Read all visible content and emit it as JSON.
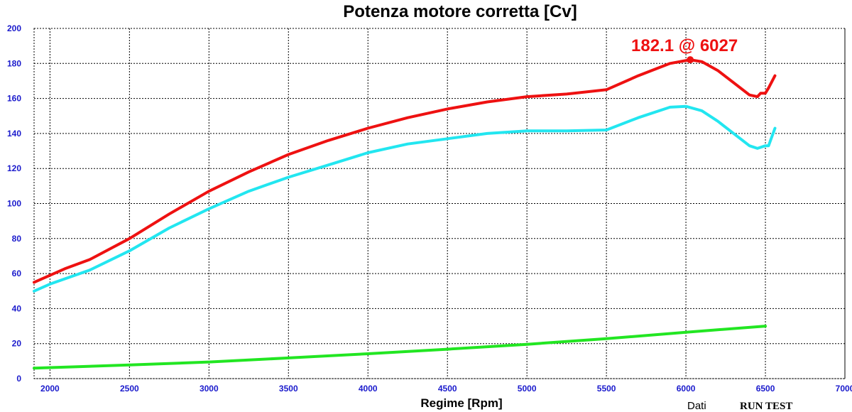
{
  "chart_data": {
    "type": "line",
    "title": "Potenza motore corretta [Cv]",
    "xlabel": "Regime [Rpm]",
    "ylabel": "",
    "xlim": [
      1900,
      7000
    ],
    "ylim": [
      0,
      200
    ],
    "xticks": [
      2000,
      2500,
      3000,
      3500,
      4000,
      4500,
      5000,
      5500,
      6000,
      6500,
      7000
    ],
    "yticks": [
      0,
      20,
      40,
      60,
      80,
      100,
      120,
      140,
      160,
      180,
      200
    ],
    "grid": true,
    "series": [
      {
        "color": "#ee1111",
        "x": [
          1900,
          2000,
          2100,
          2250,
          2500,
          2750,
          3000,
          3250,
          3500,
          3750,
          4000,
          4250,
          4500,
          4750,
          5000,
          5250,
          5500,
          5700,
          5900,
          6027,
          6100,
          6200,
          6300,
          6400,
          6450,
          6470,
          6500,
          6520,
          6560
        ],
        "y": [
          55,
          59,
          63,
          68,
          80,
          94,
          107,
          118,
          128,
          136,
          143,
          149,
          154,
          158,
          161,
          162.5,
          165,
          173,
          180,
          182.1,
          181,
          176,
          169,
          162,
          161,
          163,
          163,
          166,
          173
        ]
      },
      {
        "color": "#22e6f0",
        "x": [
          1900,
          2000,
          2250,
          2500,
          2750,
          3000,
          3250,
          3500,
          3750,
          4000,
          4250,
          4500,
          4750,
          5000,
          5250,
          5500,
          5700,
          5900,
          6000,
          6100,
          6200,
          6300,
          6400,
          6450,
          6500,
          6520,
          6560
        ],
        "y": [
          50,
          54,
          62,
          73,
          86,
          97,
          107,
          115,
          122,
          129,
          134,
          137,
          140,
          141.5,
          141.5,
          142,
          149,
          155,
          155.5,
          153,
          147,
          140,
          133,
          131.5,
          133,
          133,
          143
        ]
      },
      {
        "color": "#22e622",
        "x": [
          1900,
          2500,
          3000,
          3500,
          4000,
          4500,
          5000,
          5500,
          6000,
          6500
        ],
        "y": [
          6,
          7.8,
          9.5,
          11.8,
          14.2,
          16.8,
          19.6,
          22.8,
          26.5,
          30
        ]
      }
    ],
    "annotations": [
      {
        "text": "182.1 @ 6027",
        "x": 6027,
        "y": 182.1,
        "color": "#ee1111"
      }
    ]
  },
  "footer": {
    "dati": "Dati",
    "run_test": "RUN TEST"
  }
}
